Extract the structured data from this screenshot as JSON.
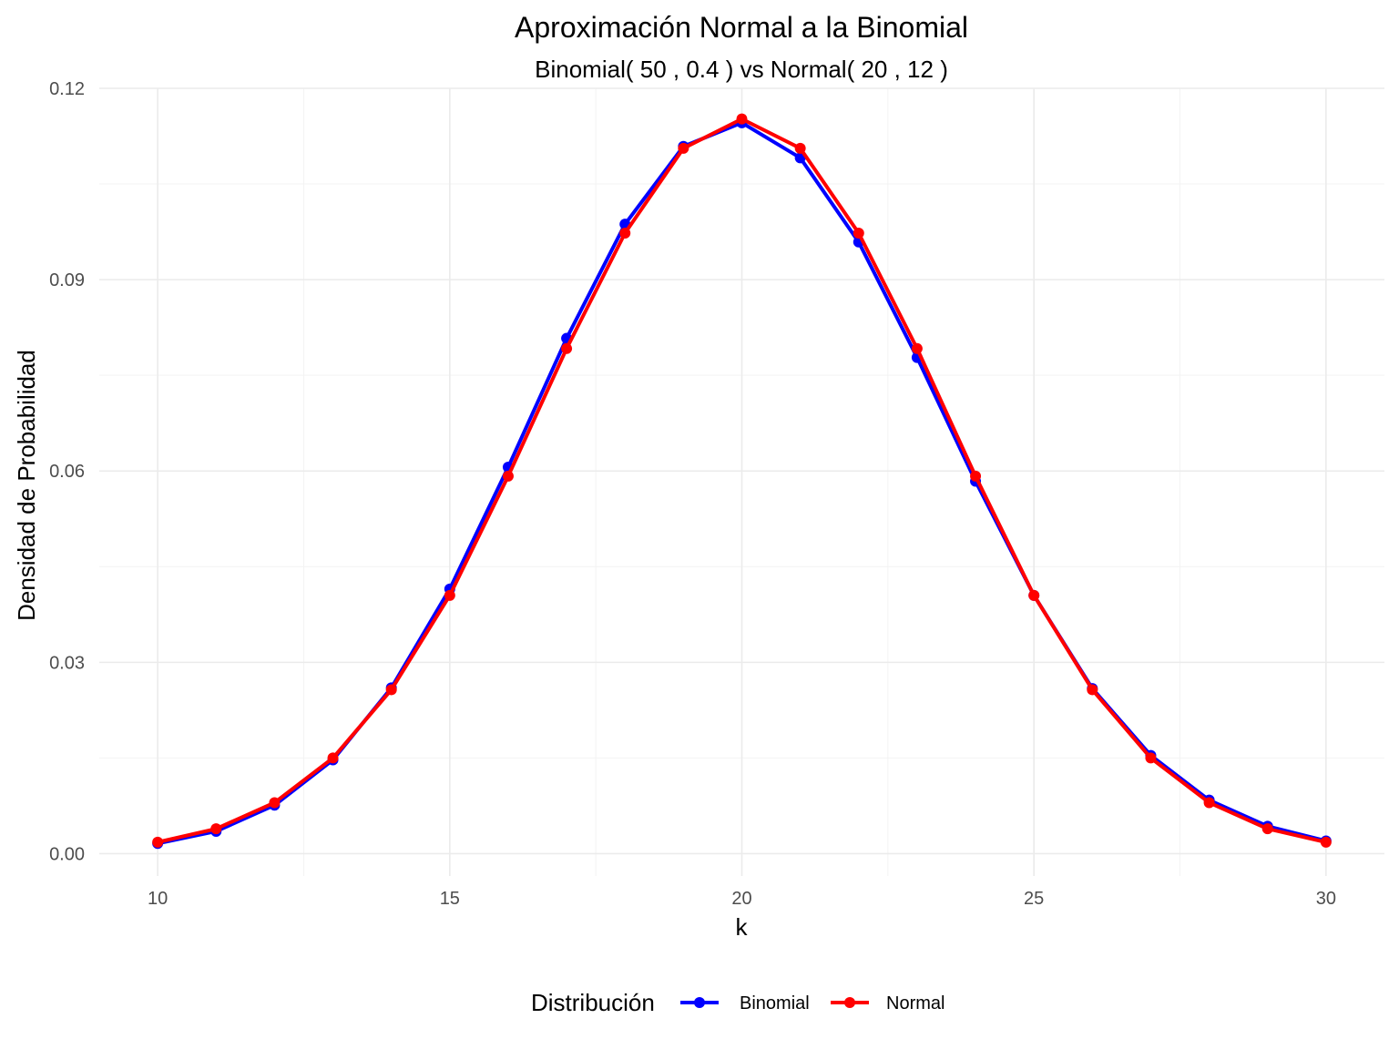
{
  "chart_data": {
    "type": "line",
    "title": "Aproximación Normal a la Binomial",
    "subtitle": "Binomial( 50 , 0.4 ) vs Normal( 20 , 12 )",
    "xlabel": "k",
    "ylabel": "Densidad de Probabilidad",
    "xlim": [
      9,
      31
    ],
    "ylim": [
      -0.0035,
      0.12
    ],
    "x_ticks": [
      10,
      15,
      20,
      25,
      30
    ],
    "y_ticks": [
      0.0,
      0.03,
      0.06,
      0.09,
      0.12
    ],
    "x_tick_labels": [
      "10",
      "15",
      "20",
      "25",
      "30"
    ],
    "y_tick_labels": [
      "0.00",
      "0.03",
      "0.06",
      "0.09",
      "0.12"
    ],
    "grid": true,
    "legend": {
      "title": "Distribución",
      "position": "bottom"
    },
    "x": [
      10,
      11,
      12,
      13,
      14,
      15,
      16,
      17,
      18,
      19,
      20,
      21,
      22,
      23,
      24,
      25,
      26,
      27,
      28,
      29,
      30
    ],
    "series": [
      {
        "name": "Binomial",
        "color": "#0000FF",
        "values": [
          0.0016,
          0.0035,
          0.0076,
          0.0147,
          0.026,
          0.0415,
          0.0606,
          0.0808,
          0.0987,
          0.1109,
          0.1146,
          0.1091,
          0.0959,
          0.0778,
          0.0584,
          0.0405,
          0.0259,
          0.0154,
          0.0084,
          0.0043,
          0.002
        ]
      },
      {
        "name": "Normal",
        "color": "#FF0000",
        "values": [
          0.0018,
          0.0039,
          0.008,
          0.015,
          0.0257,
          0.0405,
          0.0592,
          0.0792,
          0.0973,
          0.1106,
          0.1152,
          0.1106,
          0.0973,
          0.0792,
          0.0592,
          0.0405,
          0.0257,
          0.015,
          0.008,
          0.0039,
          0.0018
        ]
      }
    ]
  }
}
